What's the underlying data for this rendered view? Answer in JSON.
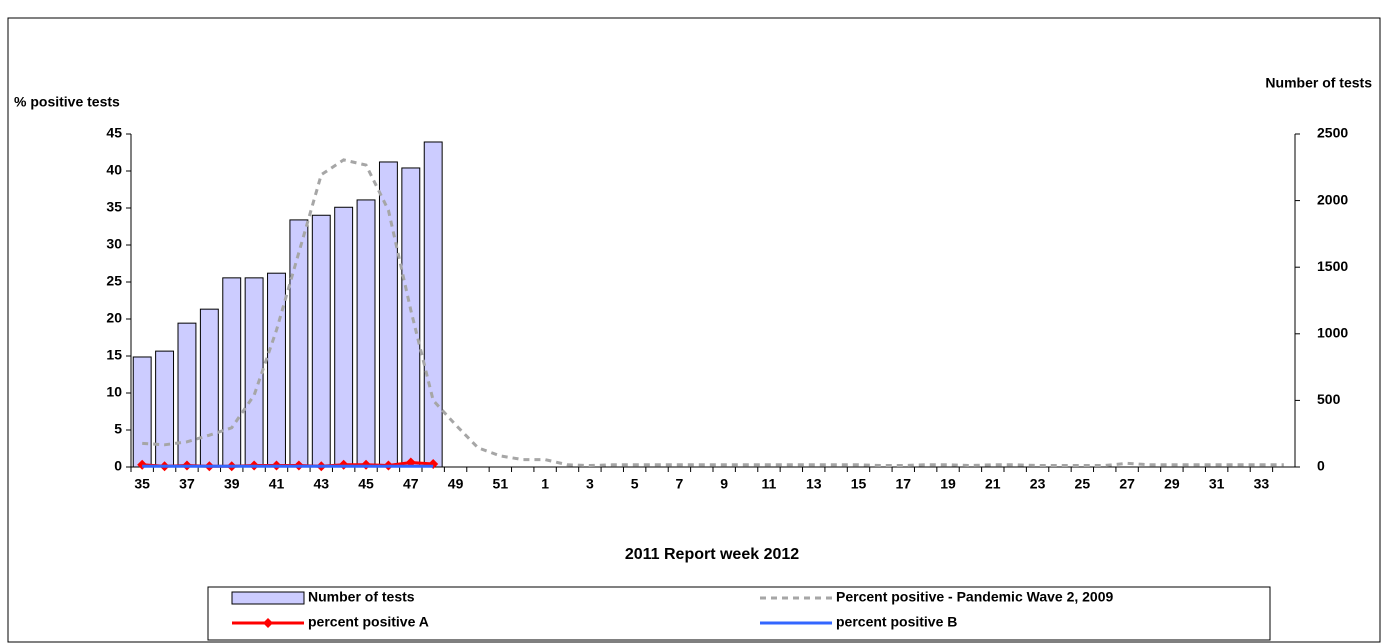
{
  "chart_data": {
    "type": "combo",
    "y_label": "% positive tests",
    "y2_label": "Number of tests",
    "x_label": "2011  Report week  2012",
    "categories": [
      35,
      null,
      37,
      null,
      39,
      null,
      41,
      null,
      43,
      null,
      45,
      null,
      47,
      null,
      49,
      null,
      51,
      null,
      1,
      null,
      3,
      null,
      5,
      null,
      7,
      null,
      9,
      null,
      11,
      null,
      13,
      null,
      15,
      null,
      17,
      null,
      19,
      null,
      21,
      null,
      23,
      null,
      25,
      null,
      27,
      null,
      29,
      null,
      31,
      null,
      33,
      null
    ],
    "ylim": [
      0,
      45
    ],
    "yticks": [
      0,
      5,
      10,
      15,
      20,
      25,
      30,
      35,
      40,
      45
    ],
    "y2lim": [
      0,
      2500
    ],
    "y2ticks": [
      0,
      500,
      1000,
      1500,
      2000,
      2500
    ],
    "series": [
      {
        "name": "Number of tests",
        "type": "bar",
        "axis": "y2",
        "color": "#ccccff",
        "values": [
          826,
          870,
          1080,
          1185,
          1420,
          1420,
          1455,
          1855,
          1890,
          1950,
          2005,
          2290,
          2245,
          2440,
          null,
          null,
          null,
          null,
          null,
          null,
          null,
          null,
          null,
          null,
          null,
          null,
          null,
          null,
          null,
          null,
          null,
          null,
          null,
          null,
          null,
          null,
          null,
          null,
          null,
          null,
          null,
          null,
          null,
          null,
          null,
          null,
          null,
          null,
          null,
          null,
          null,
          null
        ]
      },
      {
        "name": "Percent positive - Pandemic Wave 2, 2009",
        "type": "line",
        "dash": true,
        "color": "#a6a6a6",
        "values": [
          3.2,
          3,
          3.4,
          4.3,
          5.3,
          9.7,
          18.5,
          29,
          39.5,
          41.5,
          40.8,
          34.7,
          21.2,
          9,
          5.7,
          2.6,
          1.5,
          1,
          1,
          0.3,
          0.2,
          0.3,
          0.3,
          0.3,
          0.3,
          0.3,
          0.3,
          0.3,
          0.3,
          0.3,
          0.3,
          0.3,
          0.3,
          0.2,
          0.2,
          0.3,
          0.3,
          0.2,
          0.3,
          0.3,
          0.2,
          0.2,
          0.2,
          0.2,
          0.5,
          0.3,
          0.3,
          0.3,
          0.3,
          0.3,
          0.3,
          0.3
        ]
      },
      {
        "name": "percent positive A",
        "type": "line",
        "marker": "diamond",
        "color": "#ff0000",
        "values": [
          0.3,
          0.1,
          0.2,
          0.1,
          0.1,
          0.2,
          0.2,
          0.2,
          0.1,
          0.3,
          0.3,
          0.2,
          0.6,
          0.4,
          null,
          null,
          null,
          null,
          null,
          null,
          null,
          null,
          null,
          null,
          null,
          null,
          null,
          null,
          null,
          null,
          null,
          null,
          null,
          null,
          null,
          null,
          null,
          null,
          null,
          null,
          null,
          null,
          null,
          null,
          null,
          null,
          null,
          null,
          null,
          null,
          null,
          null
        ]
      },
      {
        "name": "percent positive B",
        "type": "line",
        "color": "#3366ff",
        "values": [
          0.1,
          0.1,
          0.1,
          0.1,
          0.1,
          0.1,
          0.1,
          0.1,
          0.1,
          0.1,
          0.1,
          0.1,
          0.1,
          0.1,
          null,
          null,
          null,
          null,
          null,
          null,
          null,
          null,
          null,
          null,
          null,
          null,
          null,
          null,
          null,
          null,
          null,
          null,
          null,
          null,
          null,
          null,
          null,
          null,
          null,
          null,
          null,
          null,
          null,
          null,
          null,
          null,
          null,
          null,
          null,
          null,
          null,
          null
        ]
      }
    ]
  }
}
